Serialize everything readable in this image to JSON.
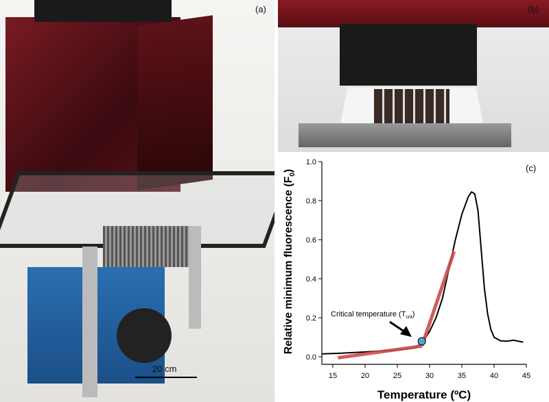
{
  "panels": {
    "a": "(a)",
    "b": "(b)",
    "c": "(c)"
  },
  "scale_bar": "20 cm",
  "chart_data": {
    "type": "line",
    "xlabel": "Temperature (ºC)",
    "ylabel": "Relative minimum fluorescence (F0)",
    "xlim": [
      13.3,
      45
    ],
    "ylim": [
      0,
      1.0
    ],
    "xticks": [
      15,
      20,
      25,
      30,
      35,
      40,
      45
    ],
    "yticks": [
      "0.0",
      "0.2",
      "0.4",
      "0.6",
      "0.8",
      "1.0"
    ],
    "grid": false,
    "series": [
      {
        "color": "#000000",
        "x": [
          13.3,
          16,
          20,
          25,
          27,
          28,
          29,
          30,
          31,
          32,
          33,
          34,
          35,
          36,
          36.5,
          37,
          37.5,
          38,
          38.5,
          39,
          39.5,
          40,
          41,
          42,
          43,
          44.5
        ],
        "y": [
          0.015,
          0.018,
          0.025,
          0.035,
          0.042,
          0.05,
          0.08,
          0.13,
          0.2,
          0.3,
          0.45,
          0.6,
          0.73,
          0.82,
          0.845,
          0.835,
          0.75,
          0.55,
          0.35,
          0.22,
          0.14,
          0.1,
          0.082,
          0.08,
          0.085,
          0.075
        ]
      },
      {
        "color": "#cc4b4b",
        "x": [
          15.8,
          28.8
        ],
        "y": [
          -0.005,
          0.055
        ]
      },
      {
        "color": "#cc4b4b",
        "x": [
          28.8,
          33.8
        ],
        "y": [
          0.055,
          0.54
        ]
      }
    ],
    "marker": {
      "x": 28.8,
      "y": 0.08,
      "color": "#4aa8d8"
    },
    "annotation": {
      "text": "Critical temperature (T",
      "sub": "crit",
      ")": ")"
    }
  }
}
